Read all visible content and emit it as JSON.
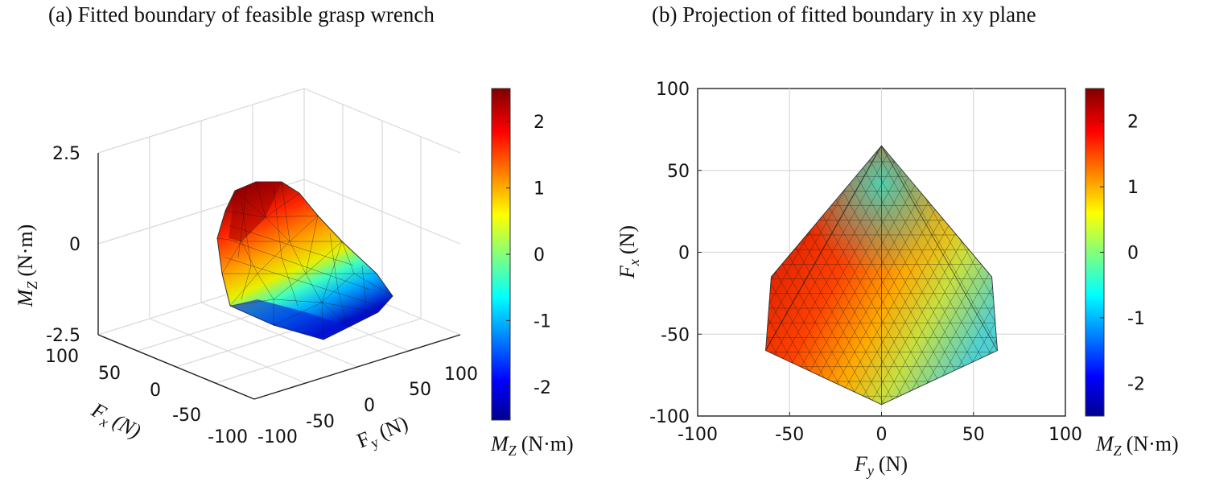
{
  "chart_data": [
    {
      "type": "surface3d",
      "title": "(a) Fitted boundary of feasible grasp wrench",
      "xlabel": "F_x (N)",
      "ylabel": "F_y (N)",
      "zlabel": "M_z (N·m)",
      "xlim": [
        -100,
        100
      ],
      "ylim": [
        -100,
        100
      ],
      "zlim": [
        -2.5,
        2.5
      ],
      "x_ticks": [
        "100",
        "50",
        "0",
        "-50",
        "-100"
      ],
      "y_ticks": [
        "-100",
        "-50",
        "0",
        "50",
        "100"
      ],
      "z_ticks": [
        "2.5",
        "0",
        "-2.5"
      ],
      "grid": true,
      "colormap": "jet",
      "colorbar": {
        "label": "M_z (N·m)",
        "range": [
          -2.5,
          2.5
        ],
        "ticks": [
          "2",
          "1",
          "0",
          "-1",
          "-2"
        ],
        "tick_values": [
          2,
          1,
          0,
          -1,
          -2
        ]
      }
    },
    {
      "type": "surface_projection",
      "title": "(b) Projection of fitted boundary in xy plane",
      "xlabel": "F_y (N)",
      "ylabel": "F_x (N)",
      "xlim": [
        -100,
        100
      ],
      "ylim": [
        -100,
        100
      ],
      "x_ticks": [
        "-100",
        "-50",
        "0",
        "50",
        "100"
      ],
      "y_ticks": [
        "100",
        "50",
        "0",
        "-50",
        "-100"
      ],
      "x_tick_values": [
        -100,
        -50,
        0,
        50,
        100
      ],
      "y_tick_values": [
        100,
        50,
        0,
        -50,
        -100
      ],
      "grid": true,
      "colormap": "jet",
      "boundary_outline_fy_fx": [
        [
          0,
          65
        ],
        [
          -60,
          -15
        ],
        [
          -63,
          -60
        ],
        [
          0,
          -93
        ],
        [
          63,
          -60
        ],
        [
          60,
          -15
        ]
      ],
      "colorbar": {
        "label": "M_z (N·m)",
        "range": [
          -2.5,
          2.5
        ],
        "ticks": [
          "2",
          "1",
          "0",
          "-1",
          "-2"
        ],
        "tick_values": [
          2,
          1,
          0,
          -1,
          -2
        ]
      }
    }
  ],
  "labels": {
    "fx": "F",
    "fx_sub": "x",
    "fy": "F",
    "fy_sub": "y",
    "mz": "M",
    "mz_sub": "Z",
    "unit_n": "(N)",
    "unit_nm": "(N·m)"
  },
  "colormap_stops": [
    "#00008f",
    "#0000ff",
    "#00ffff",
    "#ffff00",
    "#ff0000",
    "#800000"
  ]
}
